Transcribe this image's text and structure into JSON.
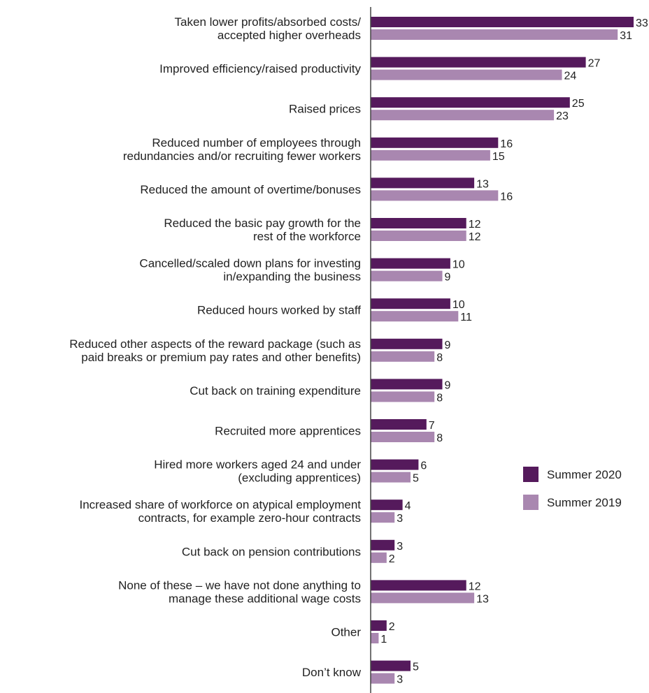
{
  "chart_data": {
    "type": "bar",
    "orientation": "horizontal",
    "categories": [
      [
        "Taken lower profits/absorbed costs/",
        "accepted higher overheads"
      ],
      [
        "Improved efficiency/raised productivity"
      ],
      [
        "Raised prices"
      ],
      [
        "Reduced number of employees through",
        "redundancies and/or recruiting fewer workers"
      ],
      [
        "Reduced the amount of overtime/bonuses"
      ],
      [
        "Reduced the basic pay growth for the",
        "rest of the workforce"
      ],
      [
        "Cancelled/scaled down plans for investing",
        "in/expanding the business"
      ],
      [
        "Reduced hours worked by staff"
      ],
      [
        "Reduced other aspects of the reward package (such as",
        "paid breaks or premium pay rates and other benefits)"
      ],
      [
        "Cut back on training expenditure"
      ],
      [
        "Recruited more apprentices"
      ],
      [
        "Hired more workers aged 24 and under",
        "(excluding apprentices)"
      ],
      [
        "Increased share of workforce on atypical employment",
        "contracts, for example zero-hour contracts"
      ],
      [
        "Cut back on pension contributions"
      ],
      [
        "None of these – we have not done anything to",
        "manage these additional wage costs"
      ],
      [
        "Other"
      ],
      [
        "Don’t know"
      ]
    ],
    "series": [
      {
        "name": "Summer 2020",
        "color": "#551a5c",
        "values": [
          33,
          27,
          25,
          16,
          13,
          12,
          10,
          10,
          9,
          9,
          7,
          6,
          4,
          3,
          12,
          2,
          5
        ]
      },
      {
        "name": "Summer 2019",
        "color": "#a987b0",
        "values": [
          31,
          24,
          23,
          15,
          16,
          12,
          9,
          11,
          8,
          8,
          8,
          5,
          3,
          2,
          13,
          1,
          3
        ]
      }
    ],
    "xlim": [
      0,
      35
    ],
    "grid": false,
    "legend_position": "right",
    "data_labels": true
  }
}
